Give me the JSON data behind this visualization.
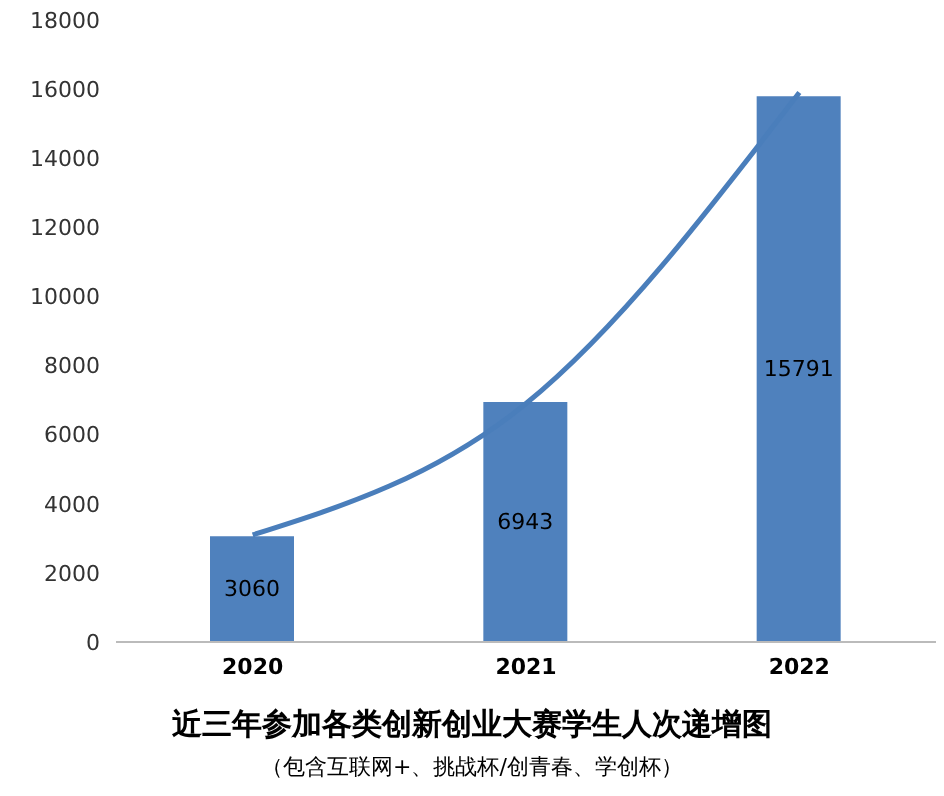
{
  "chart_data": {
    "type": "bar",
    "title": "近三年参加各类创新创业大赛学生人次递增图",
    "subtitle": "（包含互联网+、挑战杯/创青春、学创杯）",
    "categories": [
      "2020",
      "2021",
      "2022"
    ],
    "series": [
      {
        "color": "#4f81bd",
        "values": [
          3060,
          6943,
          15791
        ],
        "value_labels": [
          "3060",
          "6943",
          "15791"
        ]
      },
      {
        "type": "line",
        "color": "#4a7ebb",
        "values": [
          3100,
          6900,
          15900
        ]
      }
    ],
    "ylim": [
      0,
      18000
    ],
    "yticks": [
      0,
      2000,
      4000,
      6000,
      8000,
      10000,
      12000,
      14000,
      16000,
      18000
    ],
    "grid": false,
    "legend": false,
    "marker": "none"
  }
}
